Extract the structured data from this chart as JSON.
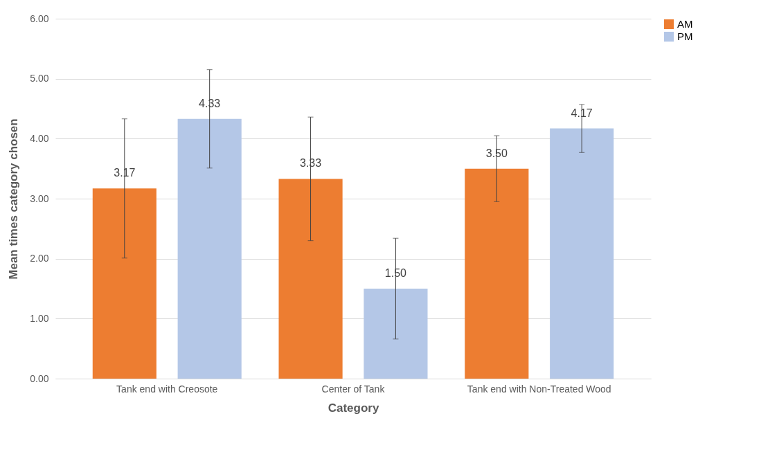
{
  "chart_data": {
    "type": "bar",
    "xlabel": "Category",
    "ylabel": "Mean times category chosen",
    "categories": [
      "Tank end with Creosote",
      "Center of Tank",
      "Tank end with Non-Treated Wood"
    ],
    "series": [
      {
        "name": "AM",
        "color": "#ed7d31",
        "values": [
          3.17,
          3.33,
          3.5
        ],
        "errors": [
          1.16,
          1.03,
          0.55
        ],
        "value_labels": [
          "3.17",
          "3.33",
          "3.50"
        ]
      },
      {
        "name": "PM",
        "color": "#b4c7e7",
        "values": [
          4.33,
          1.5,
          4.17
        ],
        "errors": [
          0.82,
          0.84,
          0.4
        ],
        "value_labels": [
          "4.33",
          "1.50",
          "4.17"
        ]
      }
    ],
    "ylim": [
      0,
      6
    ],
    "yticks": [
      {
        "value": 0,
        "label": "0.00"
      },
      {
        "value": 1,
        "label": "1.00"
      },
      {
        "value": 2,
        "label": "2.00"
      },
      {
        "value": 3,
        "label": "3.00"
      },
      {
        "value": 4,
        "label": "4.00"
      },
      {
        "value": 5,
        "label": "5.00"
      },
      {
        "value": 6,
        "label": "6.00"
      }
    ],
    "grid": "y",
    "legend": "right"
  }
}
